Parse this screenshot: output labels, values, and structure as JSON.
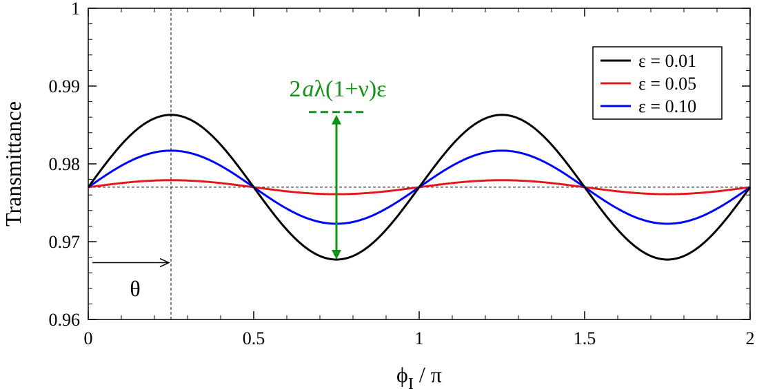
{
  "chart_data": {
    "type": "line",
    "title": "",
    "xlabel_main": "ϕ",
    "xlabel_sub": "I",
    "xlabel_tail": " / π",
    "ylabel": "Transmittance",
    "xlim": [
      0,
      2
    ],
    "ylim": [
      0.96,
      1.0
    ],
    "x_ticks": [
      0,
      0.5,
      1,
      1.5,
      2
    ],
    "x_tick_labels": [
      "0",
      "0.5",
      "1",
      "1.5",
      "2"
    ],
    "y_ticks": [
      0.96,
      0.97,
      0.98,
      0.99,
      1.0
    ],
    "y_tick_labels": [
      "0.96",
      "0.97",
      "0.98",
      "0.99",
      "1"
    ],
    "grid": false,
    "legend_position": "top-right",
    "baseline": 0.977,
    "series": [
      {
        "name": "ε = 0.01",
        "color": "#000000",
        "amplitude": 0.0093,
        "x": [
          0,
          0.125,
          0.25,
          0.375,
          0.5,
          0.625,
          0.75,
          0.875,
          1.0,
          1.125,
          1.25,
          1.375,
          1.5,
          1.625,
          1.75,
          1.875,
          2.0
        ],
        "y": [
          0.977,
          0.9836,
          0.9863,
          0.9836,
          0.977,
          0.9704,
          0.9677,
          0.9704,
          0.977,
          0.9836,
          0.9863,
          0.9836,
          0.977,
          0.9704,
          0.9677,
          0.9704,
          0.977
        ]
      },
      {
        "name": "ε = 0.05",
        "color": "#e31a1c",
        "amplitude": 0.0009,
        "x": [
          0,
          0.125,
          0.25,
          0.375,
          0.5,
          0.625,
          0.75,
          0.875,
          1.0,
          1.125,
          1.25,
          1.375,
          1.5,
          1.625,
          1.75,
          1.875,
          2.0
        ],
        "y": [
          0.977,
          0.9776,
          0.9779,
          0.9776,
          0.977,
          0.9764,
          0.9761,
          0.9764,
          0.977,
          0.9776,
          0.9779,
          0.9776,
          0.977,
          0.9764,
          0.9761,
          0.9764,
          0.977
        ]
      },
      {
        "name": "ε = 0.10",
        "color": "#0000ff",
        "amplitude": 0.0047,
        "x": [
          0,
          0.125,
          0.25,
          0.375,
          0.5,
          0.625,
          0.75,
          0.875,
          1.0,
          1.125,
          1.25,
          1.375,
          1.5,
          1.625,
          1.75,
          1.875,
          2.0
        ],
        "y": [
          0.977,
          0.9803,
          0.9817,
          0.9803,
          0.977,
          0.9737,
          0.9723,
          0.9737,
          0.977,
          0.9803,
          0.9817,
          0.9803,
          0.977,
          0.9737,
          0.9723,
          0.9737,
          0.977
        ]
      }
    ],
    "annotations": {
      "amplitude_label": "2aλ(1+ν)ε",
      "amplitude_label_parts": [
        "2",
        "a",
        "λ(1+ν)ε"
      ],
      "amplitude_arrow_x": 0.75,
      "amplitude_arrow_y": [
        0.9677,
        0.9863
      ],
      "theta_label": "θ",
      "theta_x": 0.25,
      "theta_arrow_y": 0.9673,
      "colors": {
        "green": "#119411"
      }
    }
  }
}
